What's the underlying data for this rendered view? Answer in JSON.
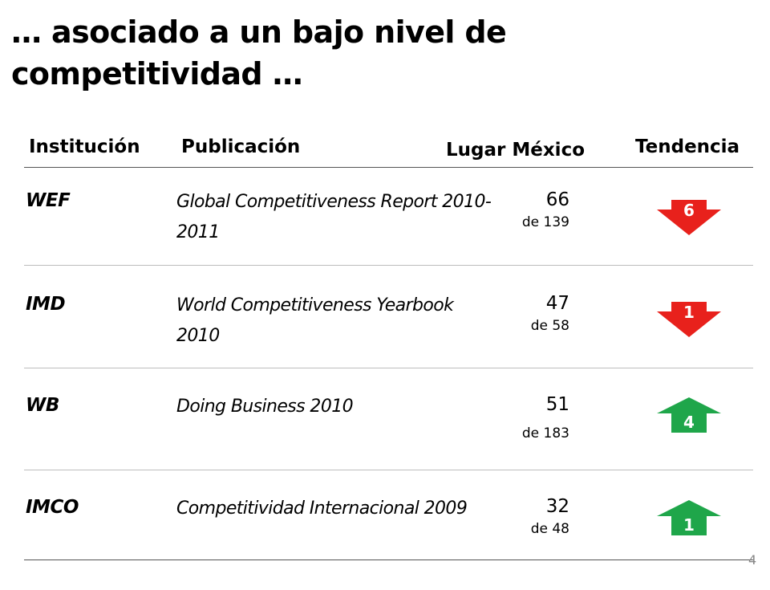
{
  "title": "… asociado a un bajo nivel de competitividad …",
  "headers": {
    "institucion": "Institución",
    "publicacion": "Publicación",
    "lugar": "Lugar México",
    "tendencia": "Tendencia"
  },
  "rows": [
    {
      "institution": "WEF",
      "publication": "Global Competitiveness Report 2010-2011",
      "rank": "66",
      "of": "de 139",
      "trend": {
        "direction": "down",
        "value": "6",
        "color": "#e8211c"
      }
    },
    {
      "institution": "IMD",
      "publication": "World Competitiveness Yearbook 2010",
      "rank": "47",
      "of": "de 58",
      "trend": {
        "direction": "down",
        "value": "1",
        "color": "#e8211c"
      }
    },
    {
      "institution": "WB",
      "publication": "Doing Business 2010",
      "rank": "51",
      "of": "de 183",
      "trend": {
        "direction": "up",
        "value": "4",
        "color": "#1fa64a"
      }
    },
    {
      "institution": "IMCO",
      "publication": "Competitividad Internacional 2009",
      "rank": "32",
      "of": "de 48",
      "trend": {
        "direction": "up",
        "value": "1",
        "color": "#1fa64a"
      }
    }
  ],
  "page_number": "4"
}
